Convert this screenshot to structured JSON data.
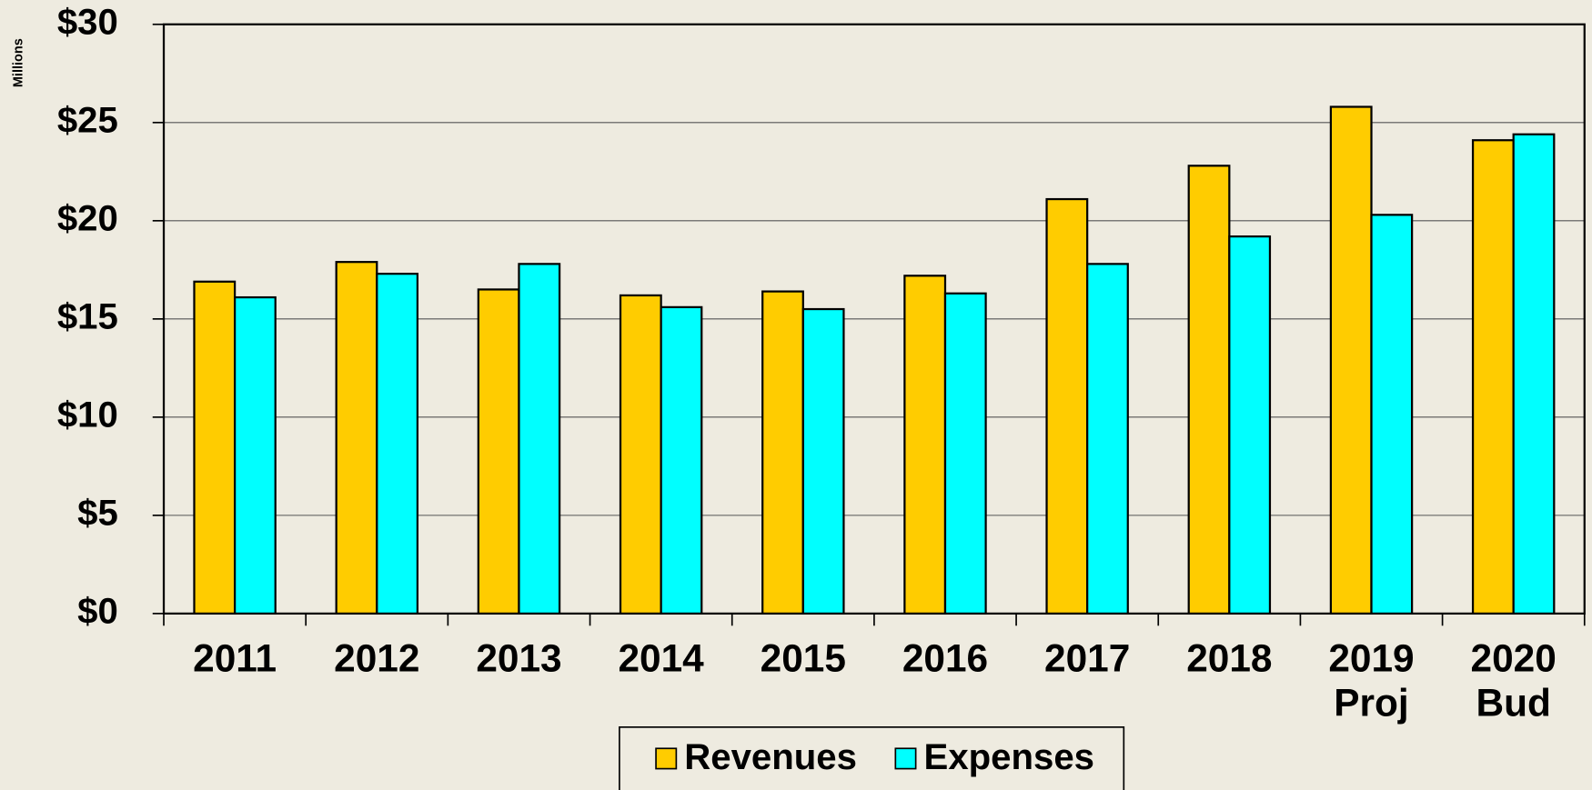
{
  "chart_data": {
    "type": "bar",
    "y_label": "Millions",
    "categories": [
      "2011",
      "2012",
      "2013",
      "2014",
      "2015",
      "2016",
      "2017",
      "2018",
      "2019 Proj",
      "2020 Bud"
    ],
    "series": [
      {
        "name": "Revenues",
        "color": "#ffcc00",
        "values": [
          16.9,
          17.9,
          16.5,
          16.2,
          16.4,
          17.2,
          21.1,
          22.8,
          25.8,
          24.1
        ]
      },
      {
        "name": "Expenses",
        "color": "#00ffff",
        "values": [
          16.1,
          17.3,
          17.8,
          15.6,
          15.5,
          16.3,
          17.8,
          19.2,
          20.3,
          24.4
        ]
      }
    ],
    "ylim": [
      0,
      30
    ],
    "yticks": [
      {
        "value": 0,
        "label": "$0"
      },
      {
        "value": 5,
        "label": "$5"
      },
      {
        "value": 10,
        "label": "$10"
      },
      {
        "value": 15,
        "label": "$15"
      },
      {
        "value": 20,
        "label": "$20"
      },
      {
        "value": 25,
        "label": "$25"
      },
      {
        "value": 30,
        "label": "$30"
      }
    ],
    "grid": true,
    "legend": "bottom"
  }
}
